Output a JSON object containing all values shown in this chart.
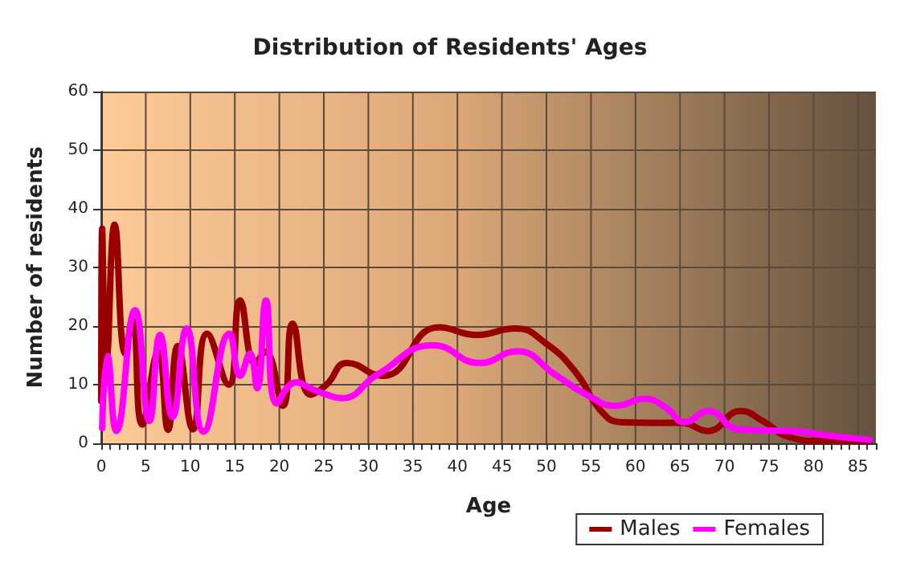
{
  "chart_data": {
    "type": "line",
    "title": "Distribution of Residents' Ages",
    "xlabel": "Age",
    "ylabel": "Number of residents",
    "xlim": [
      0,
      87
    ],
    "xticks": [
      0,
      5,
      10,
      15,
      20,
      25,
      30,
      35,
      40,
      45,
      50,
      55,
      60,
      65,
      70,
      75,
      80,
      85
    ],
    "ylim": [
      0,
      60
    ],
    "yticks": [
      0,
      10,
      20,
      30,
      40,
      50,
      60
    ],
    "grid": true,
    "legend": "bottom right",
    "marker": "none",
    "line_style": "solid",
    "series": [
      {
        "name": "Males",
        "color": "#990000",
        "x": [
          0,
          0.1,
          0.6,
          1.5,
          2.7,
          3.5,
          4.6,
          6.4,
          7.5,
          8.6,
          10.3,
          11.9,
          14.3,
          15.6,
          17.3,
          18.4,
          20.4,
          21.5,
          23.5,
          25.3,
          27.6,
          31.6,
          37.9,
          42.2,
          46.5,
          49.9,
          53.3,
          56.2,
          58.4,
          61.8,
          65.2,
          68.1,
          71.8,
          74.3,
          77.2,
          80.6,
          86.3
        ],
        "values": [
          7.2,
          36.6,
          14.5,
          37.3,
          15.3,
          21.3,
          3.2,
          15.6,
          2.3,
          16.6,
          2.4,
          18.7,
          10,
          24.4,
          13.6,
          15.6,
          6.4,
          20.4,
          8.3,
          10,
          13.7,
          11.5,
          19.8,
          18.5,
          19.6,
          17.1,
          12.1,
          5.4,
          3.6,
          3.5,
          3.5,
          2.1,
          5.5,
          3.8,
          1.1,
          0.4,
          0.4
        ]
      },
      {
        "name": "Females",
        "color": "#ff00ff",
        "x": [
          0.1,
          0.7,
          1.7,
          3.8,
          5.4,
          6.6,
          8,
          9.6,
          11.5,
          14.4,
          15.6,
          16.7,
          17.5,
          18.5,
          19.7,
          21.9,
          23.5,
          25.3,
          27,
          31,
          37.3,
          42.5,
          46.7,
          51,
          54.5,
          57.8,
          61,
          63.5,
          65.5,
          68.2,
          71.5,
          74.9,
          77.7,
          81.7,
          86.3
        ],
        "values": [
          2.6,
          14.9,
          2.1,
          22.7,
          3.8,
          18.5,
          4.5,
          19.6,
          2,
          18.7,
          11.5,
          15.3,
          9.4,
          24.4,
          6.8,
          10.4,
          9.4,
          8.3,
          7.7,
          11.7,
          16.7,
          13.7,
          15.7,
          11.7,
          8.3,
          6.4,
          7.6,
          6,
          3.6,
          5.5,
          2.4,
          2.2,
          2.1,
          1.3,
          0.6
        ]
      }
    ]
  }
}
